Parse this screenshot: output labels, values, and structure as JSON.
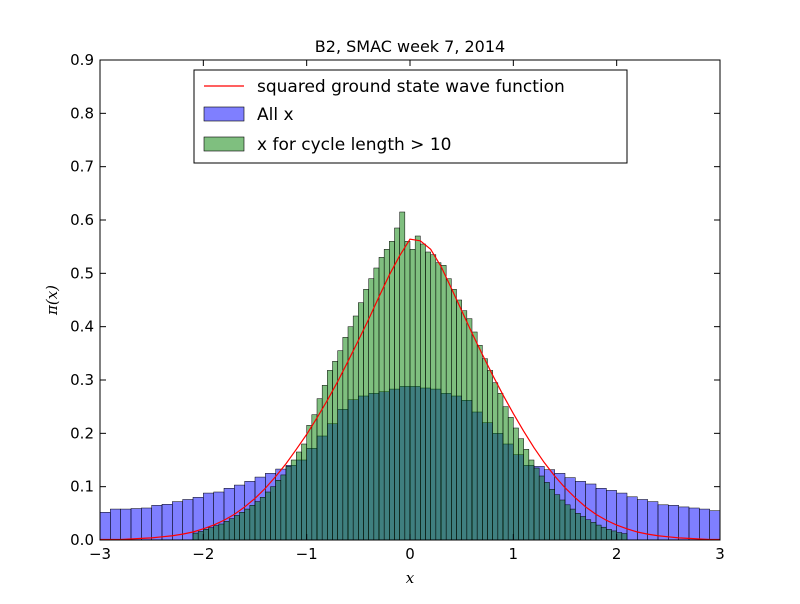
{
  "chart_data": {
    "type": "bar",
    "title": "B2, SMAC week 7, 2014",
    "xlabel": "x",
    "ylabel": "π(x)",
    "xlim": [
      -3,
      3
    ],
    "ylim": [
      0,
      0.9
    ],
    "xticks": [
      -3,
      -2,
      -1,
      0,
      1,
      2,
      3
    ],
    "yticks": [
      0.0,
      0.1,
      0.2,
      0.3,
      0.4,
      0.5,
      0.6,
      0.7,
      0.8,
      0.9
    ],
    "xtick_labels": [
      "−3",
      "−2",
      "−1",
      "0",
      "1",
      "2",
      "3"
    ],
    "ytick_labels": [
      "0.0",
      "0.1",
      "0.2",
      "0.3",
      "0.4",
      "0.5",
      "0.6",
      "0.7",
      "0.8",
      "0.9"
    ],
    "grid": false,
    "legend_position": "upper-center",
    "legend": [
      {
        "label": "squared ground state wave function",
        "kind": "line",
        "color": "#ff0000"
      },
      {
        "label": "All x",
        "kind": "patch",
        "color": "#0000ff",
        "alpha": 0.5
      },
      {
        "label": "x for cycle length > 10",
        "kind": "patch",
        "color": "#008000",
        "alpha": 0.5
      }
    ],
    "curve": {
      "name": "squared ground state wave function",
      "color": "#ff0000",
      "x": [
        -3.0,
        -2.9,
        -2.8,
        -2.7,
        -2.6,
        -2.5,
        -2.4,
        -2.3,
        -2.2,
        -2.1,
        -2.0,
        -1.9,
        -1.8,
        -1.7,
        -1.6,
        -1.5,
        -1.4,
        -1.3,
        -1.2,
        -1.1,
        -1.0,
        -0.9,
        -0.8,
        -0.7,
        -0.6,
        -0.5,
        -0.4,
        -0.3,
        -0.2,
        -0.1,
        0.0,
        0.1,
        0.2,
        0.3,
        0.4,
        0.5,
        0.6,
        0.7,
        0.8,
        0.9,
        1.0,
        1.1,
        1.2,
        1.3,
        1.4,
        1.5,
        1.6,
        1.7,
        1.8,
        1.9,
        2.0,
        2.1,
        2.2,
        2.3,
        2.4,
        2.5,
        2.6,
        2.7,
        2.8,
        2.9,
        3.0
      ],
      "y": [
        0.001,
        0.001,
        0.001,
        0.002,
        0.003,
        0.004,
        0.006,
        0.008,
        0.011,
        0.015,
        0.021,
        0.028,
        0.037,
        0.048,
        0.062,
        0.078,
        0.097,
        0.119,
        0.143,
        0.17,
        0.198,
        0.229,
        0.262,
        0.297,
        0.335,
        0.374,
        0.414,
        0.456,
        0.497,
        0.533,
        0.564,
        0.561,
        0.545,
        0.513,
        0.472,
        0.43,
        0.388,
        0.348,
        0.309,
        0.272,
        0.237,
        0.204,
        0.173,
        0.145,
        0.12,
        0.098,
        0.079,
        0.062,
        0.048,
        0.037,
        0.028,
        0.021,
        0.015,
        0.011,
        0.008,
        0.006,
        0.004,
        0.003,
        0.002,
        0.001,
        0.001
      ]
    },
    "series": [
      {
        "name": "All x",
        "color": "#0000ff",
        "alpha": 0.5,
        "bin_edges": [
          -3.0,
          -2.9,
          -2.8,
          -2.7,
          -2.6,
          -2.5,
          -2.4,
          -2.3,
          -2.2,
          -2.1,
          -2.0,
          -1.9,
          -1.8,
          -1.7,
          -1.6,
          -1.5,
          -1.4,
          -1.3,
          -1.2,
          -1.1,
          -1.0,
          -0.9,
          -0.8,
          -0.7,
          -0.6,
          -0.5,
          -0.4,
          -0.3,
          -0.2,
          -0.1,
          0.0,
          0.1,
          0.2,
          0.3,
          0.4,
          0.5,
          0.6,
          0.7,
          0.8,
          0.9,
          1.0,
          1.1,
          1.2,
          1.3,
          1.4,
          1.5,
          1.6,
          1.7,
          1.8,
          1.9,
          2.0,
          2.1,
          2.2,
          2.3,
          2.4,
          2.5,
          2.6,
          2.7,
          2.8,
          2.9,
          3.0
        ],
        "values": [
          0.052,
          0.058,
          0.058,
          0.059,
          0.06,
          0.065,
          0.067,
          0.072,
          0.076,
          0.08,
          0.088,
          0.09,
          0.097,
          0.103,
          0.11,
          0.118,
          0.125,
          0.133,
          0.14,
          0.15,
          0.172,
          0.195,
          0.218,
          0.245,
          0.263,
          0.27,
          0.275,
          0.278,
          0.283,
          0.288,
          0.288,
          0.285,
          0.283,
          0.275,
          0.27,
          0.262,
          0.24,
          0.22,
          0.2,
          0.18,
          0.16,
          0.14,
          0.138,
          0.132,
          0.125,
          0.117,
          0.11,
          0.105,
          0.097,
          0.093,
          0.088,
          0.081,
          0.076,
          0.072,
          0.066,
          0.065,
          0.062,
          0.06,
          0.058,
          0.055
        ]
      },
      {
        "name": "x for cycle length > 10",
        "color": "#008000",
        "alpha": 0.5,
        "bin_edges": [
          -2.1,
          -2.05,
          -2.0,
          -1.95,
          -1.9,
          -1.85,
          -1.8,
          -1.75,
          -1.7,
          -1.65,
          -1.6,
          -1.55,
          -1.5,
          -1.45,
          -1.4,
          -1.35,
          -1.3,
          -1.25,
          -1.2,
          -1.15,
          -1.1,
          -1.05,
          -1.0,
          -0.95,
          -0.9,
          -0.85,
          -0.8,
          -0.75,
          -0.7,
          -0.65,
          -0.6,
          -0.55,
          -0.5,
          -0.45,
          -0.4,
          -0.35,
          -0.3,
          -0.25,
          -0.2,
          -0.15,
          -0.1,
          -0.05,
          0.0,
          0.05,
          0.1,
          0.15,
          0.2,
          0.25,
          0.3,
          0.35,
          0.4,
          0.45,
          0.5,
          0.55,
          0.6,
          0.65,
          0.7,
          0.75,
          0.8,
          0.85,
          0.9,
          0.95,
          1.0,
          1.05,
          1.1,
          1.15,
          1.2,
          1.25,
          1.3,
          1.35,
          1.4,
          1.45,
          1.5,
          1.55,
          1.6,
          1.65,
          1.7,
          1.75,
          1.8,
          1.85,
          1.9,
          1.95,
          2.0,
          2.05,
          2.1
        ],
        "values": [
          0.013,
          0.016,
          0.02,
          0.023,
          0.027,
          0.03,
          0.035,
          0.04,
          0.046,
          0.052,
          0.058,
          0.065,
          0.072,
          0.08,
          0.09,
          0.1,
          0.112,
          0.122,
          0.138,
          0.15,
          0.165,
          0.18,
          0.215,
          0.235,
          0.265,
          0.29,
          0.318,
          0.335,
          0.355,
          0.38,
          0.4,
          0.42,
          0.445,
          0.47,
          0.49,
          0.51,
          0.53,
          0.545,
          0.56,
          0.585,
          0.615,
          0.56,
          0.545,
          0.57,
          0.555,
          0.54,
          0.535,
          0.52,
          0.515,
          0.49,
          0.47,
          0.45,
          0.43,
          0.415,
          0.39,
          0.365,
          0.34,
          0.318,
          0.295,
          0.275,
          0.25,
          0.23,
          0.21,
          0.19,
          0.17,
          0.15,
          0.135,
          0.12,
          0.108,
          0.095,
          0.085,
          0.075,
          0.066,
          0.058,
          0.05,
          0.044,
          0.038,
          0.033,
          0.028,
          0.024,
          0.02,
          0.017,
          0.014,
          0.012
        ]
      }
    ]
  }
}
